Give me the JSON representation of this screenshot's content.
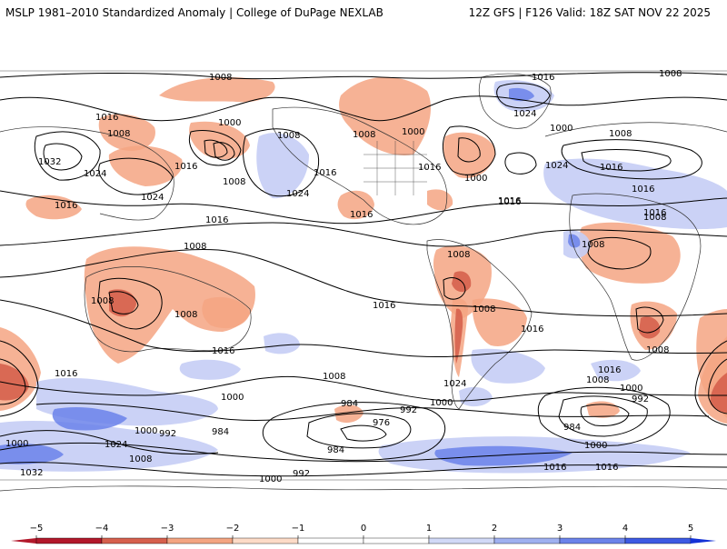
{
  "header": {
    "left_title": "MSLP 1981–2010 Standardized Anomaly | College of DuPage NEXLAB",
    "right_title": "12Z GFS | F126 Valid: 18Z SAT NOV 22 2025"
  },
  "map": {
    "isobar_labels": [
      {
        "text": "1008"
      },
      {
        "text": "1016"
      },
      {
        "text": "1008"
      },
      {
        "text": "1032"
      },
      {
        "text": "1024"
      },
      {
        "text": "1016"
      },
      {
        "text": "1000"
      },
      {
        "text": "1008"
      },
      {
        "text": "1016"
      },
      {
        "text": "1008"
      },
      {
        "text": "1024"
      },
      {
        "text": "1024"
      },
      {
        "text": "1016"
      },
      {
        "text": "1008"
      },
      {
        "text": "1008"
      },
      {
        "text": "1000"
      },
      {
        "text": "1016"
      },
      {
        "text": "1000"
      },
      {
        "text": "1016"
      },
      {
        "text": "1016"
      },
      {
        "text": "1024"
      },
      {
        "text": "1024"
      },
      {
        "text": "1016"
      },
      {
        "text": "1000"
      },
      {
        "text": "1008"
      },
      {
        "text": "1016"
      },
      {
        "text": "1008"
      },
      {
        "text": "1016"
      },
      {
        "text": "1008"
      },
      {
        "text": "1008"
      },
      {
        "text": "1008"
      },
      {
        "text": "1016"
      },
      {
        "text": "1008"
      },
      {
        "text": "1016"
      },
      {
        "text": "1008"
      },
      {
        "text": "1016"
      },
      {
        "text": "1016"
      },
      {
        "text": "1008"
      },
      {
        "text": "1016"
      },
      {
        "text": "1016"
      },
      {
        "text": "1024"
      },
      {
        "text": "1008"
      },
      {
        "text": "1000"
      },
      {
        "text": "1000"
      },
      {
        "text": "992"
      },
      {
        "text": "984"
      },
      {
        "text": "984"
      },
      {
        "text": "992"
      },
      {
        "text": "976"
      },
      {
        "text": "1000"
      },
      {
        "text": "984"
      },
      {
        "text": "1000"
      },
      {
        "text": "1000"
      },
      {
        "text": "1016"
      },
      {
        "text": "1016"
      },
      {
        "text": "1008"
      },
      {
        "text": "992"
      },
      {
        "text": "984"
      },
      {
        "text": "1000"
      },
      {
        "text": "1016"
      },
      {
        "text": "1008"
      },
      {
        "text": "1016"
      },
      {
        "text": "992"
      },
      {
        "text": "1000"
      },
      {
        "text": "1032"
      },
      {
        "text": "1024"
      },
      {
        "text": "1008"
      }
    ]
  },
  "colorbar": {
    "ticks": [
      "−5",
      "−4",
      "−3",
      "−2",
      "−1",
      "0",
      "1",
      "2",
      "3",
      "4",
      "5"
    ],
    "colors": [
      "#b2182b",
      "#d6604d",
      "#f4a582",
      "#fddbc7",
      "#ffffff",
      "#ffffff",
      "#d1d9f7",
      "#9fb0f0",
      "#6b83ea",
      "#3d5ae3",
      "#1432d6"
    ]
  }
}
